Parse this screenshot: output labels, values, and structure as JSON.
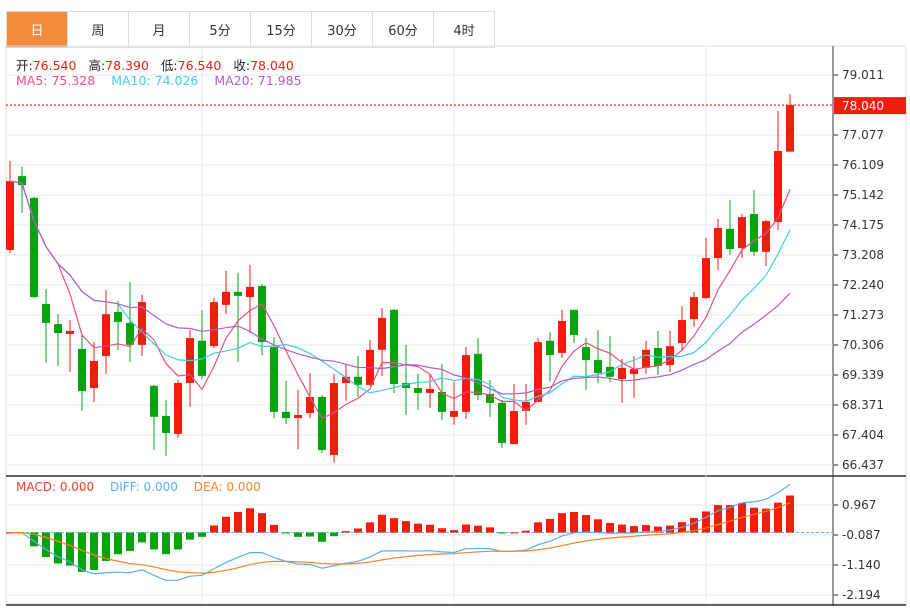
{
  "tabs": [
    {
      "label": "日",
      "active": true
    },
    {
      "label": "周"
    },
    {
      "label": "月"
    },
    {
      "label": "5分"
    },
    {
      "label": "15分"
    },
    {
      "label": "30分"
    },
    {
      "label": "60分"
    },
    {
      "label": "4时"
    }
  ],
  "ohlc": {
    "open_label": "开:",
    "open": "76.540",
    "high_label": "高:",
    "high": "78.390",
    "low_label": "低:",
    "low": "76.540",
    "close_label": "收:",
    "close": "78.040"
  },
  "ma": {
    "ma5": "MA5: 75.328",
    "ma10": "MA10: 74.026",
    "ma20": "MA20: 71.985"
  },
  "macd_legend": {
    "macd": "MACD: 0.000",
    "diff": "DIFF: 0.000",
    "dea": "DEA: 0.000"
  },
  "colors": {
    "up": "#f21e0d",
    "down": "#08a40f",
    "ma5": "#ee4d86",
    "ma10": "#3fcde0",
    "ma20": "#b35ccb",
    "diff": "#5aaeef",
    "dea": "#f5842a",
    "accent": "#f28c3c"
  },
  "chart_data": {
    "type": "candlestick",
    "price_ticks": [
      "79.011",
      "77.077",
      "76.109",
      "75.142",
      "74.175",
      "73.208",
      "72.240",
      "71.273",
      "70.306",
      "69.339",
      "68.371",
      "67.404",
      "66.437"
    ],
    "price_range": [
      66.437,
      79.011
    ],
    "last_price": "78.040",
    "macd_ticks": [
      "0.967",
      "-0.087",
      "-1.140",
      "-2.194"
    ],
    "candles": [
      [
        73.37,
        75.59,
        76.24,
        73.27
      ],
      [
        75.75,
        75.46,
        76.05,
        74.56
      ],
      [
        75.05,
        71.85,
        75.08,
        71.82
      ],
      [
        71.63,
        71.02,
        72.11,
        69.73
      ],
      [
        70.98,
        70.69,
        71.3,
        69.63
      ],
      [
        70.66,
        70.76,
        71.11,
        69.44
      ],
      [
        70.18,
        68.82,
        70.66,
        68.18
      ],
      [
        68.92,
        69.79,
        70.4,
        68.47
      ],
      [
        69.95,
        71.3,
        72.08,
        69.37
      ],
      [
        71.37,
        71.05,
        71.72,
        70.15
      ],
      [
        71.02,
        70.31,
        72.34,
        69.76
      ],
      [
        70.31,
        71.69,
        71.92,
        69.95
      ],
      [
        68.99,
        67.99,
        69.02,
        66.92
      ],
      [
        68.02,
        67.47,
        68.53,
        66.73
      ],
      [
        67.44,
        69.08,
        69.18,
        67.31
      ],
      [
        69.08,
        70.53,
        70.79,
        68.31
      ],
      [
        70.44,
        69.31,
        71.42,
        69.21
      ],
      [
        70.27,
        71.69,
        71.82,
        70.21
      ],
      [
        71.6,
        72.02,
        72.69,
        71.31
      ],
      [
        72.02,
        71.89,
        72.63,
        69.76
      ],
      [
        71.85,
        72.18,
        72.89,
        70.69
      ],
      [
        72.21,
        70.4,
        72.27,
        69.98
      ],
      [
        70.24,
        68.15,
        70.56,
        67.95
      ],
      [
        68.15,
        67.95,
        69.15,
        67.76
      ],
      [
        67.95,
        68.05,
        68.86,
        66.95
      ],
      [
        68.11,
        68.63,
        69.4,
        67.95
      ],
      [
        68.63,
        66.92,
        68.69,
        66.82
      ],
      [
        66.76,
        69.08,
        69.37,
        66.52
      ],
      [
        69.08,
        69.28,
        69.66,
        68.5
      ],
      [
        69.28,
        69.02,
        69.95,
        68.63
      ],
      [
        69.02,
        70.15,
        70.47,
        68.99
      ],
      [
        70.15,
        71.18,
        71.5,
        69.31
      ],
      [
        71.44,
        69.05,
        71.47,
        68.76
      ],
      [
        69.08,
        68.92,
        70.31,
        68.05
      ],
      [
        68.92,
        68.76,
        69.37,
        68.21
      ],
      [
        68.76,
        68.89,
        69.34,
        68.27
      ],
      [
        68.79,
        68.15,
        69.69,
        67.89
      ],
      [
        67.99,
        68.18,
        69.11,
        67.73
      ],
      [
        68.15,
        69.98,
        70.24,
        67.92
      ],
      [
        70.02,
        68.69,
        70.53,
        68.53
      ],
      [
        68.73,
        68.44,
        69.18,
        67.99
      ],
      [
        68.44,
        67.15,
        68.53,
        66.99
      ],
      [
        67.11,
        68.18,
        69.05,
        67.11
      ],
      [
        68.18,
        68.47,
        69.05,
        67.73
      ],
      [
        68.47,
        70.4,
        70.53,
        68.47
      ],
      [
        70.44,
        69.98,
        70.73,
        69.13
      ],
      [
        70.05,
        71.08,
        71.44,
        69.89
      ],
      [
        71.44,
        70.63,
        71.44,
        70.37
      ],
      [
        70.24,
        69.82,
        70.53,
        68.86
      ],
      [
        69.82,
        69.4,
        70.79,
        69.08
      ],
      [
        69.6,
        69.28,
        70.6,
        69.11
      ],
      [
        69.21,
        69.57,
        69.86,
        68.44
      ],
      [
        69.37,
        69.53,
        69.95,
        68.6
      ],
      [
        69.57,
        70.15,
        70.44,
        69.37
      ],
      [
        70.21,
        69.63,
        70.76,
        69.34
      ],
      [
        69.66,
        70.27,
        70.76,
        69.44
      ],
      [
        70.37,
        71.11,
        71.56,
        70.11
      ],
      [
        71.14,
        71.85,
        72.02,
        70.89
      ],
      [
        71.82,
        73.11,
        73.76,
        71.79
      ],
      [
        73.11,
        74.08,
        74.37,
        72.72
      ],
      [
        74.05,
        73.4,
        74.98,
        73.21
      ],
      [
        73.43,
        74.43,
        74.53,
        73.11
      ],
      [
        74.53,
        73.31,
        75.3,
        73.18
      ],
      [
        73.31,
        74.3,
        74.34,
        72.85
      ],
      [
        74.27,
        76.56,
        77.85,
        74.01
      ],
      [
        76.54,
        78.04,
        78.39,
        76.54
      ]
    ]
  }
}
